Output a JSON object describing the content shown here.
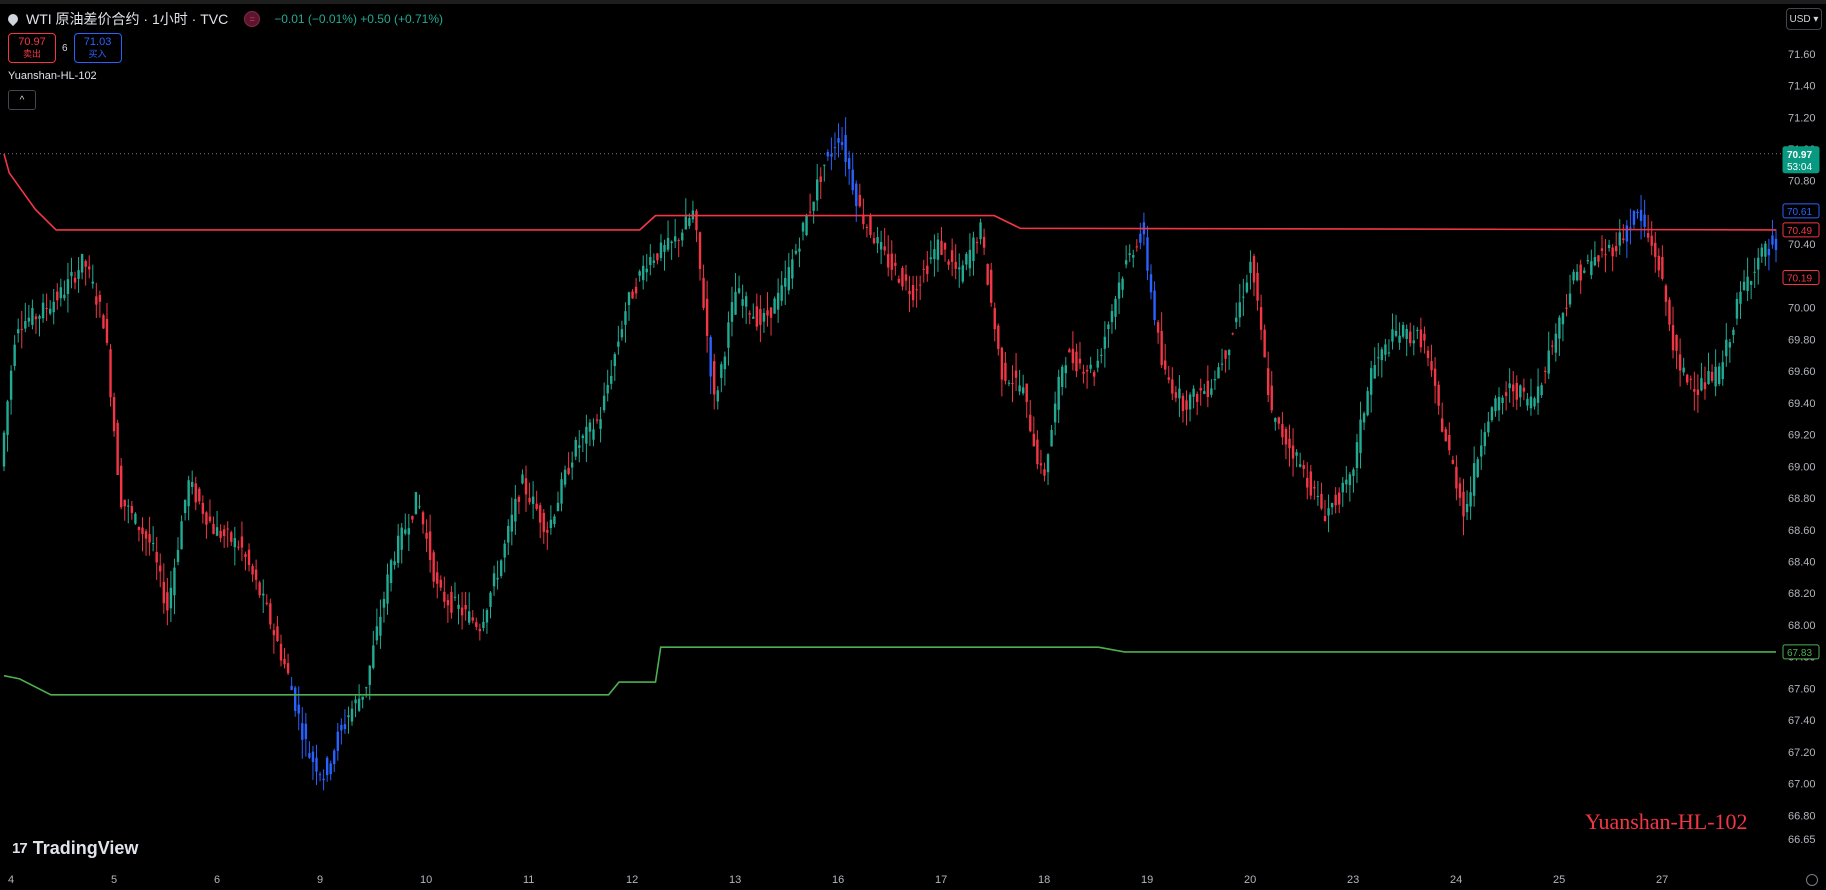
{
  "header": {
    "title": "WTI 原油差价合约 · 1小时 · TVC",
    "status_icon": "circle-equals-icon",
    "change": "−0.01 (−0.01%) +0.50 (+0.71%)"
  },
  "trade": {
    "sell_price": "70.97",
    "sell_label": "卖出",
    "spread": "6",
    "buy_price": "71.03",
    "buy_label": "买入"
  },
  "indicator": {
    "name": "Yuanshan-HL-102",
    "collapse_glyph": "^"
  },
  "currency": "USD",
  "watermark": "Yuanshan-HL-102",
  "brand": {
    "icon": "tradingview-logo-icon",
    "mark": "17",
    "name": "TradingView"
  },
  "colors": {
    "up": "#22ab94",
    "down": "#f23645",
    "signal": "#2962ff",
    "upper_line": "#f23645",
    "lower_line": "#4caf50"
  },
  "chart_data": {
    "type": "candlestick",
    "ylim": [
      66.55,
      71.75
    ],
    "y_ticks": [
      "71.60",
      "71.40",
      "71.20",
      "71.00",
      "70.80",
      "70.60",
      "70.40",
      "70.20",
      "70.00",
      "69.80",
      "69.60",
      "69.40",
      "69.20",
      "69.00",
      "68.80",
      "68.60",
      "68.40",
      "68.20",
      "68.00",
      "67.80",
      "67.60",
      "67.40",
      "67.20",
      "67.00",
      "66.80",
      "66.65"
    ],
    "x_ticks": [
      "4",
      "5",
      "6",
      "9",
      "10",
      "11",
      "12",
      "13",
      "16",
      "17",
      "18",
      "19",
      "20",
      "23",
      "24",
      "25",
      "27"
    ],
    "price_labels": [
      {
        "value": 70.97,
        "text": "70.97",
        "sub": "53:04",
        "color": "#089981",
        "filled": true
      },
      {
        "value": 70.61,
        "text": "70.61",
        "color": "#2962ff",
        "filled": false
      },
      {
        "value": 70.49,
        "text": "70.49",
        "color": "#f23645",
        "filled": false
      },
      {
        "value": 70.19,
        "text": "70.19",
        "color": "#f23645",
        "filled": false
      },
      {
        "value": 67.83,
        "text": "67.83",
        "color": "#4caf50",
        "filled": false
      }
    ],
    "current_price": 70.97,
    "upper_line": [
      [
        0,
        70.97
      ],
      [
        0.1,
        70.85
      ],
      [
        0.6,
        70.62
      ],
      [
        1,
        70.49
      ],
      [
        12.2,
        70.49
      ],
      [
        12.5,
        70.58
      ],
      [
        19,
        70.58
      ],
      [
        19.5,
        70.5
      ],
      [
        34,
        70.49
      ]
    ],
    "lower_line": [
      [
        0,
        67.68
      ],
      [
        0.3,
        67.66
      ],
      [
        0.9,
        67.56
      ],
      [
        11.6,
        67.56
      ],
      [
        11.8,
        67.64
      ],
      [
        12.5,
        67.64
      ],
      [
        12.6,
        67.86
      ],
      [
        21,
        67.86
      ],
      [
        21.5,
        67.83
      ],
      [
        34,
        67.83
      ]
    ],
    "price_path": [
      [
        0,
        69.0
      ],
      [
        0.3,
        69.9
      ],
      [
        0.7,
        69.95
      ],
      [
        1.2,
        70.1
      ],
      [
        1.6,
        70.3
      ],
      [
        2.0,
        69.9
      ],
      [
        2.3,
        68.8
      ],
      [
        2.9,
        68.5
      ],
      [
        3.2,
        68.1
      ],
      [
        3.6,
        68.9
      ],
      [
        4.1,
        68.6
      ],
      [
        4.6,
        68.5
      ],
      [
        5.1,
        68.1
      ],
      [
        5.5,
        67.7
      ],
      [
        5.9,
        67.2
      ],
      [
        6.2,
        67.05
      ],
      [
        6.6,
        67.4
      ],
      [
        7.0,
        67.6
      ],
      [
        7.5,
        68.4
      ],
      [
        8.0,
        68.8
      ],
      [
        8.4,
        68.2
      ],
      [
        8.8,
        68.1
      ],
      [
        9.2,
        68.0
      ],
      [
        9.6,
        68.4
      ],
      [
        10.0,
        68.9
      ],
      [
        10.5,
        68.6
      ],
      [
        11.0,
        69.1
      ],
      [
        11.5,
        69.3
      ],
      [
        12.0,
        70.0
      ],
      [
        12.4,
        70.3
      ],
      [
        12.9,
        70.4
      ],
      [
        13.3,
        70.6
      ],
      [
        13.7,
        69.4
      ],
      [
        14.1,
        70.1
      ],
      [
        14.6,
        69.9
      ],
      [
        15.0,
        70.1
      ],
      [
        15.4,
        70.5
      ],
      [
        15.8,
        70.9
      ],
      [
        16.1,
        71.1
      ],
      [
        16.5,
        70.6
      ],
      [
        17.0,
        70.3
      ],
      [
        17.5,
        70.1
      ],
      [
        18.0,
        70.4
      ],
      [
        18.4,
        70.2
      ],
      [
        18.8,
        70.5
      ],
      [
        19.2,
        69.6
      ],
      [
        19.6,
        69.5
      ],
      [
        20.0,
        68.9
      ],
      [
        20.4,
        69.7
      ],
      [
        21.0,
        69.6
      ],
      [
        21.5,
        70.2
      ],
      [
        21.9,
        70.5
      ],
      [
        22.3,
        69.6
      ],
      [
        22.7,
        69.4
      ],
      [
        23.2,
        69.5
      ],
      [
        23.6,
        69.8
      ],
      [
        24.0,
        70.3
      ],
      [
        24.4,
        69.3
      ],
      [
        24.8,
        69.1
      ],
      [
        25.4,
        68.7
      ],
      [
        25.9,
        68.9
      ],
      [
        26.3,
        69.6
      ],
      [
        26.8,
        69.85
      ],
      [
        27.3,
        69.8
      ],
      [
        27.7,
        69.2
      ],
      [
        28.1,
        68.7
      ],
      [
        28.5,
        69.3
      ],
      [
        29.0,
        69.5
      ],
      [
        29.4,
        69.4
      ],
      [
        29.8,
        69.8
      ],
      [
        30.2,
        70.2
      ],
      [
        30.6,
        70.3
      ],
      [
        31.0,
        70.4
      ],
      [
        31.4,
        70.6
      ],
      [
        31.8,
        70.3
      ],
      [
        32.2,
        69.6
      ],
      [
        32.6,
        69.5
      ],
      [
        33.0,
        69.6
      ],
      [
        33.4,
        70.1
      ],
      [
        33.7,
        70.3
      ],
      [
        34,
        70.4
      ]
    ],
    "blue_segments": [
      [
        5.5,
        6.6
      ],
      [
        15.8,
        16.4
      ],
      [
        13.5,
        13.6
      ],
      [
        21.8,
        22.1
      ],
      [
        31.1,
        31.5
      ],
      [
        33.8,
        34
      ]
    ],
    "series_count": 34
  }
}
